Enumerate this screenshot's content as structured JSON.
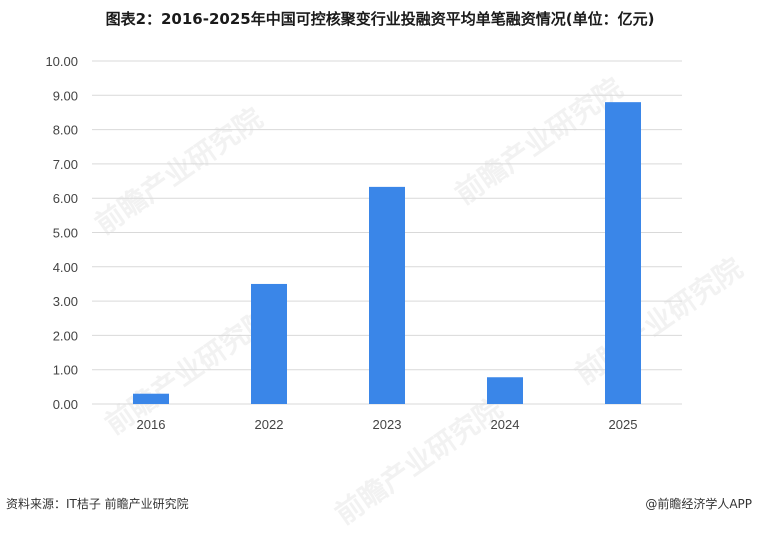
{
  "title": "图表2：2016-2025年中国可控核聚变行业投融资平均单笔融资情况(单位：亿元)",
  "source": "资料来源：IT桔子 前瞻产业研究院",
  "credit": "@前瞻经济学人APP",
  "watermark_text": "前瞻产业研究院",
  "colors": {
    "bar": "#3a86e8",
    "grid": "#d9d9d9",
    "axis_text": "#444444"
  },
  "chart_data": {
    "type": "bar",
    "title": "图表2：2016-2025年中国可控核聚变行业投融资平均单笔融资情况(单位：亿元)",
    "categories": [
      "2016",
      "2022",
      "2023",
      "2024",
      "2025"
    ],
    "values": [
      0.3,
      3.5,
      6.33,
      0.78,
      8.8
    ],
    "ylim": [
      0,
      10
    ],
    "yticks": [
      "0.00",
      "1.00",
      "2.00",
      "3.00",
      "4.00",
      "5.00",
      "6.00",
      "7.00",
      "8.00",
      "9.00",
      "10.00"
    ],
    "xlabel": "",
    "ylabel": "",
    "grid": true,
    "legend": "none"
  }
}
